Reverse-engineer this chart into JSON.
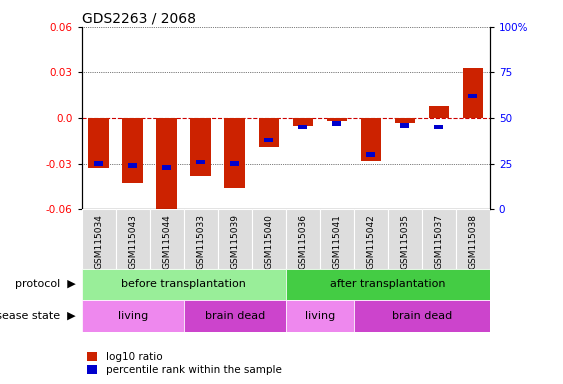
{
  "title": "GDS2263 / 2068",
  "samples": [
    "GSM115034",
    "GSM115043",
    "GSM115044",
    "GSM115033",
    "GSM115039",
    "GSM115040",
    "GSM115036",
    "GSM115041",
    "GSM115042",
    "GSM115035",
    "GSM115037",
    "GSM115038"
  ],
  "log10_ratio": [
    -0.033,
    -0.043,
    -0.061,
    -0.038,
    -0.046,
    -0.019,
    -0.005,
    -0.002,
    -0.028,
    -0.003,
    0.008,
    0.033
  ],
  "percentile_rank": [
    25,
    24,
    23,
    26,
    25,
    38,
    45,
    47,
    30,
    46,
    45,
    62
  ],
  "ylim": [
    -0.06,
    0.06
  ],
  "yticks": [
    -0.06,
    -0.03,
    0.0,
    0.03,
    0.06
  ],
  "yticks_right": [
    0,
    25,
    50,
    75,
    100
  ],
  "bar_width": 0.6,
  "bar_color_red": "#cc2200",
  "bar_color_blue": "#0000cc",
  "protocol_before_color": "#99ee99",
  "protocol_after_color": "#44cc44",
  "disease_living_color": "#ee88ee",
  "disease_braindead_color": "#cc44cc",
  "protocol_before_count": 6,
  "protocol_after_count": 6,
  "living_before_count": 3,
  "braindead_before_count": 3,
  "living_after_count": 2,
  "braindead_after_count": 4,
  "protocol_label_before": "before transplantation",
  "protocol_label_after": "after transplantation",
  "disease_label_living": "living",
  "disease_label_braindead": "brain dead",
  "legend_red": "log10 ratio",
  "legend_blue": "percentile rank within the sample",
  "dashed_zero_color": "#cc0000",
  "bg_color": "#ffffff"
}
